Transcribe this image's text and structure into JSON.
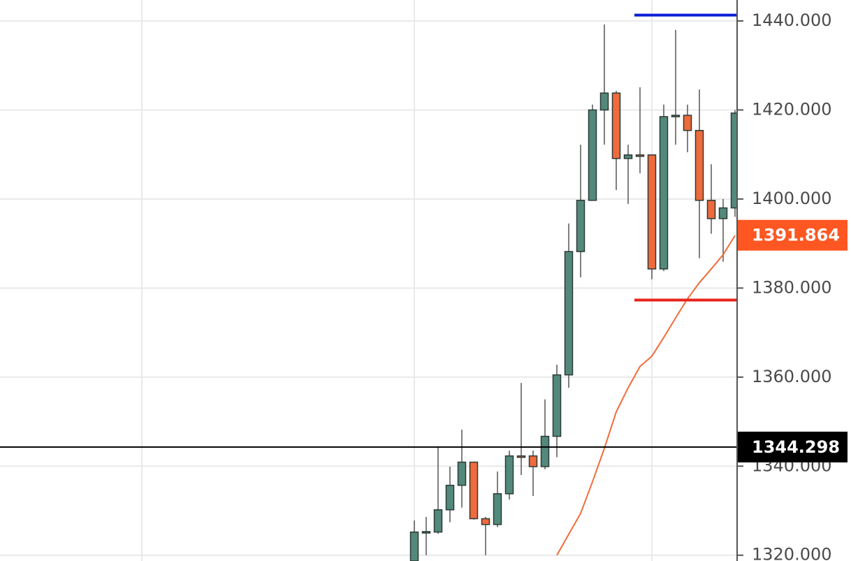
{
  "chart_data": {
    "type": "candlestick",
    "open": [
      1318.7,
      1325.2,
      1325.2,
      1330.2,
      1335.7,
      1340.9,
      1328.2,
      1326.9,
      1333.8,
      1342.3,
      1342.3,
      1339.9,
      1346.7,
      1360.5,
      1388.2,
      1399.7,
      1420,
      1423.8,
      1409.1,
      1409.9,
      1409.9,
      1384.3,
      1418.5,
      1418.8,
      1415.4,
      1399.7,
      1395.6,
      1398
    ],
    "high": [
      1327.8,
      1328.6,
      1344.3,
      1339.9,
      1348.2,
      1340.9,
      1328.6,
      1338.8,
      1343.5,
      1358.7,
      1343.5,
      1355,
      1362.8,
      1394.5,
      1412.2,
      1421.2,
      1439.2,
      1424.3,
      1412.2,
      1425.1,
      1409.9,
      1421.2,
      1438,
      1421.2,
      1424.6,
      1407.8,
      1400,
      1420
    ],
    "low": [
      1317,
      1320,
      1324.8,
      1327.4,
      1330.7,
      1328,
      1320,
      1326.3,
      1332.5,
      1338,
      1333.3,
      1339.3,
      1342,
      1357.6,
      1382.4,
      1399.7,
      1412.2,
      1402,
      1398.9,
      1405.8,
      1382,
      1383.8,
      1412.2,
      1410.5,
      1386.7,
      1392.2,
      1385.9,
      1396
    ],
    "close": [
      1325.2,
      1325.3,
      1330.2,
      1335.7,
      1340.9,
      1328.2,
      1326.9,
      1333.8,
      1342.3,
      1342.2,
      1339.9,
      1346.7,
      1360.5,
      1388.2,
      1399.7,
      1420,
      1423.8,
      1409.1,
      1409.9,
      1409.6,
      1384.3,
      1418.5,
      1418.8,
      1415.4,
      1399.7,
      1395.6,
      1398,
      1419.3
    ],
    "up_color": "#53897b",
    "down_color": "#ef6a3c",
    "moving_average": {
      "color": "#f26b3a",
      "values": [
        null,
        null,
        null,
        null,
        null,
        null,
        null,
        null,
        null,
        null,
        null,
        null,
        1320,
        1324.7,
        1329.4,
        1336.5,
        1344,
        1352.2,
        1357.6,
        1362.4,
        1364.7,
        1368.9,
        1373.3,
        1377.6,
        1381.2,
        1384.3,
        1387.5,
        1391.8
      ]
    },
    "hlines": [
      {
        "value": 1441.3,
        "color": "#0a1fd6"
      },
      {
        "value": 1377.3,
        "color": "#e8231a"
      }
    ],
    "price_labels": [
      {
        "value": 1391.864,
        "label": "1391.864",
        "color": "#ff5722"
      },
      {
        "value": 1344.298,
        "label": "1344.298",
        "color": "#000000"
      }
    ],
    "ylim": [
      1318.7,
      1444.7
    ],
    "yticks": [
      {
        "value": 1320,
        "label": "1320.000"
      },
      {
        "value": 1340,
        "label": "1340.000"
      },
      {
        "value": 1360,
        "label": "1360.000"
      },
      {
        "value": 1380,
        "label": "1380.000"
      },
      {
        "value": 1400,
        "label": "1400.000"
      },
      {
        "value": 1420,
        "label": "1420.000"
      },
      {
        "value": 1440,
        "label": "1440.000"
      }
    ],
    "grid": true
  }
}
